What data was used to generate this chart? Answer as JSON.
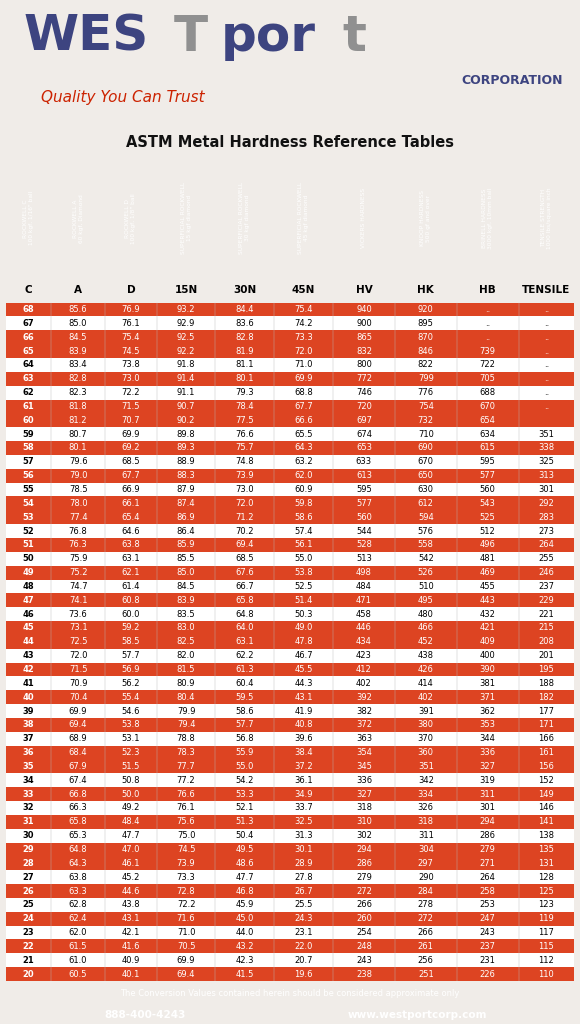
{
  "title": "ASTM Metal Hardness Reference Tables",
  "footer_note": "The Conversion Values contained herein should be considered approximate only",
  "footer_phone": "888-400-4243",
  "footer_web": "www.westportcorp.com",
  "col_headers": [
    "C",
    "A",
    "D",
    "15N",
    "30N",
    "45N",
    "HV",
    "HK",
    "HB",
    "TENSILE"
  ],
  "header_rotated": [
    "ROCKWELL C\n100 kgf, 1/16\" ball",
    "ROCKWELL A\n60 kgf, Diamond",
    "ROCKWELL D\n100 kgf, 1/8\" ball",
    "SUPERFICIAL ROCKWELL\n15 kgf diamond",
    "SUPERFICIAL ROCKWELL\n30 kgf diamond",
    "SUPERFICIAL ROCKWELL\n45 kgf diamond",
    "VICKERS HARDNESS",
    "KNOOP HARDNESS\n500 gf and over",
    "BRINELL HARDNESS\n3000 kgf, 10mm ball",
    "TENSILE STRENGTH\n1000 lbs/square inch"
  ],
  "red_bg": "#cc3300",
  "white": "#ffffff",
  "light_red": "#dd4422",
  "table_data": [
    [
      68,
      85.6,
      76.9,
      93.2,
      84.4,
      75.4,
      940,
      920,
      "..",
      ".."
    ],
    [
      67,
      85.0,
      76.1,
      92.9,
      83.6,
      74.2,
      900,
      895,
      "..",
      ".."
    ],
    [
      66,
      84.5,
      75.4,
      92.5,
      82.8,
      73.3,
      865,
      870,
      "..",
      ".."
    ],
    [
      65,
      83.9,
      74.5,
      92.2,
      81.9,
      72.0,
      832,
      846,
      739,
      ".."
    ],
    [
      64,
      83.4,
      73.8,
      91.8,
      81.1,
      71.0,
      800,
      822,
      722,
      ".."
    ],
    [
      63,
      82.8,
      73.0,
      91.4,
      80.1,
      69.9,
      772,
      799,
      705,
      ".."
    ],
    [
      62,
      82.3,
      72.2,
      91.1,
      79.3,
      68.8,
      746,
      776,
      688,
      ".."
    ],
    [
      61,
      81.8,
      71.5,
      90.7,
      78.4,
      67.7,
      720,
      754,
      670,
      ".."
    ],
    [
      60,
      81.2,
      70.7,
      90.2,
      77.5,
      66.6,
      697,
      732,
      654,
      ""
    ],
    [
      59,
      80.7,
      69.9,
      89.8,
      76.6,
      65.5,
      674,
      710,
      634,
      351
    ],
    [
      58,
      80.1,
      69.2,
      89.3,
      75.7,
      64.3,
      653,
      690,
      615,
      338
    ],
    [
      57,
      79.6,
      68.5,
      88.9,
      74.8,
      63.2,
      633,
      670,
      595,
      325
    ],
    [
      56,
      79.0,
      67.7,
      88.3,
      73.9,
      62.0,
      613,
      650,
      577,
      313
    ],
    [
      55,
      78.5,
      66.9,
      87.9,
      73.0,
      60.9,
      595,
      630,
      560,
      301
    ],
    [
      54,
      78.0,
      66.1,
      87.4,
      72.0,
      59.8,
      577,
      612,
      543,
      292
    ],
    [
      53,
      77.4,
      65.4,
      86.9,
      71.2,
      58.6,
      560,
      594,
      525,
      283
    ],
    [
      52,
      76.8,
      64.6,
      86.4,
      70.2,
      57.4,
      544,
      576,
      512,
      273
    ],
    [
      51,
      76.3,
      63.8,
      85.9,
      69.4,
      56.1,
      528,
      558,
      496,
      264
    ],
    [
      50,
      75.9,
      63.1,
      85.5,
      68.5,
      55.0,
      513,
      542,
      481,
      255
    ],
    [
      49,
      75.2,
      62.1,
      85.0,
      67.6,
      53.8,
      498,
      526,
      469,
      246
    ],
    [
      48,
      74.7,
      61.4,
      84.5,
      66.7,
      52.5,
      484,
      510,
      455,
      237
    ],
    [
      47,
      74.1,
      60.8,
      83.9,
      65.8,
      51.4,
      471,
      495,
      443,
      229
    ],
    [
      46,
      73.6,
      60.0,
      83.5,
      64.8,
      50.3,
      458,
      480,
      432,
      221
    ],
    [
      45,
      73.1,
      59.2,
      83.0,
      64.0,
      49.0,
      446,
      466,
      421,
      215
    ],
    [
      44,
      72.5,
      58.5,
      82.5,
      63.1,
      47.8,
      434,
      452,
      409,
      208
    ],
    [
      43,
      72.0,
      57.7,
      82.0,
      62.2,
      46.7,
      423,
      438,
      400,
      201
    ],
    [
      42,
      71.5,
      56.9,
      81.5,
      61.3,
      45.5,
      412,
      426,
      390,
      195
    ],
    [
      41,
      70.9,
      56.2,
      80.9,
      60.4,
      44.3,
      402,
      414,
      381,
      188
    ],
    [
      40,
      70.4,
      55.4,
      80.4,
      59.5,
      43.1,
      392,
      402,
      371,
      182
    ],
    [
      39,
      69.9,
      54.6,
      79.9,
      58.6,
      41.9,
      382,
      391,
      362,
      177
    ],
    [
      38,
      69.4,
      53.8,
      79.4,
      57.7,
      40.8,
      372,
      380,
      353,
      171
    ],
    [
      37,
      68.9,
      53.1,
      78.8,
      56.8,
      39.6,
      363,
      370,
      344,
      166
    ],
    [
      36,
      68.4,
      52.3,
      78.3,
      55.9,
      38.4,
      354,
      360,
      336,
      161
    ],
    [
      35,
      67.9,
      51.5,
      77.7,
      55.0,
      37.2,
      345,
      351,
      327,
      156
    ],
    [
      34,
      67.4,
      50.8,
      77.2,
      54.2,
      36.1,
      336,
      342,
      319,
      152
    ],
    [
      33,
      66.8,
      50.0,
      76.6,
      53.3,
      34.9,
      327,
      334,
      311,
      149
    ],
    [
      32,
      66.3,
      49.2,
      76.1,
      52.1,
      33.7,
      318,
      326,
      301,
      146
    ],
    [
      31,
      65.8,
      48.4,
      75.6,
      51.3,
      32.5,
      310,
      318,
      294,
      141
    ],
    [
      30,
      65.3,
      47.7,
      75.0,
      50.4,
      31.3,
      302,
      311,
      286,
      138
    ],
    [
      29,
      64.8,
      47.0,
      74.5,
      49.5,
      30.1,
      294,
      304,
      279,
      135
    ],
    [
      28,
      64.3,
      46.1,
      73.9,
      48.6,
      28.9,
      286,
      297,
      271,
      131
    ],
    [
      27,
      63.8,
      45.2,
      73.3,
      47.7,
      27.8,
      279,
      290,
      264,
      128
    ],
    [
      26,
      63.3,
      44.6,
      72.8,
      46.8,
      26.7,
      272,
      284,
      258,
      125
    ],
    [
      25,
      62.8,
      43.8,
      72.2,
      45.9,
      25.5,
      266,
      278,
      253,
      123
    ],
    [
      24,
      62.4,
      43.1,
      71.6,
      45.0,
      24.3,
      260,
      272,
      247,
      119
    ],
    [
      23,
      62.0,
      42.1,
      71.0,
      44.0,
      23.1,
      254,
      266,
      243,
      117
    ],
    [
      22,
      61.5,
      41.6,
      70.5,
      43.2,
      22.0,
      248,
      261,
      237,
      115
    ],
    [
      21,
      61.0,
      40.9,
      69.9,
      42.3,
      20.7,
      243,
      256,
      231,
      112
    ],
    [
      20,
      60.5,
      40.1,
      69.4,
      41.5,
      19.6,
      238,
      251,
      226,
      110
    ]
  ],
  "row_colors": [
    1,
    0,
    1,
    1,
    0,
    1,
    0,
    1,
    1,
    0,
    1,
    0,
    1,
    0,
    1,
    1,
    0,
    1,
    0,
    1,
    0,
    1,
    0,
    1,
    1,
    0,
    1,
    0,
    1,
    0,
    1,
    0,
    1,
    1,
    0,
    1,
    0,
    1,
    0,
    1,
    1,
    0,
    1,
    0,
    1,
    0,
    1,
    0,
    1
  ]
}
